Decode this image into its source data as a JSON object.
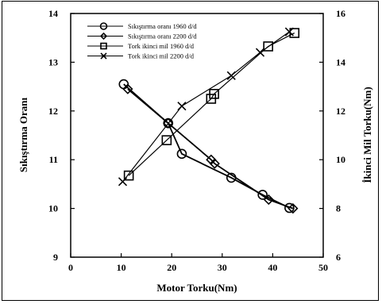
{
  "chart_data": {
    "type": "line",
    "xlabel": "Motor Torku(Nm)",
    "ylabel_left": "Sıkıştırma Oranı",
    "ylabel_right": "İkinci Mil Torku(Nm)",
    "xlim": [
      0,
      50
    ],
    "ylim_left": [
      9,
      14
    ],
    "ylim_right": [
      6,
      16
    ],
    "x_ticks": [
      "0",
      "10",
      "20",
      "30",
      "40",
      "50"
    ],
    "y_left_ticks": [
      "9",
      "10",
      "11",
      "12",
      "13",
      "14"
    ],
    "y_right_ticks": [
      "6",
      "8",
      "10",
      "12",
      "14",
      "16"
    ],
    "grid": false,
    "legend_position": "top-left",
    "series": [
      {
        "name": "Sıkıştırma oranı 1960 d/d",
        "axis": "left",
        "marker": "circle",
        "x": [
          10.5,
          19.3,
          22.0,
          31.8,
          38.0,
          43.3
        ],
        "y": [
          12.55,
          11.75,
          11.12,
          10.63,
          10.28,
          10.01
        ]
      },
      {
        "name": "Sıkıştırma oranı 2200 d/d",
        "axis": "left",
        "marker": "diamond",
        "x": [
          11.3,
          19.3,
          27.8,
          28.5,
          39.2,
          44.0
        ],
        "y": [
          12.45,
          11.75,
          11.0,
          10.92,
          10.18,
          10.0
        ]
      },
      {
        "name": "Tork ikinci mil 1960 d/d",
        "axis": "right",
        "marker": "square",
        "x": [
          11.5,
          19.0,
          27.8,
          28.4,
          39.1,
          44.3
        ],
        "y": [
          9.35,
          10.8,
          12.5,
          12.7,
          14.65,
          15.2
        ]
      },
      {
        "name": "Tork ikinci mil 2200 d/d",
        "axis": "right",
        "marker": "cross",
        "x": [
          10.3,
          22.0,
          31.8,
          37.5,
          43.3
        ],
        "y": [
          9.1,
          12.2,
          13.45,
          14.4,
          15.25
        ]
      }
    ]
  }
}
